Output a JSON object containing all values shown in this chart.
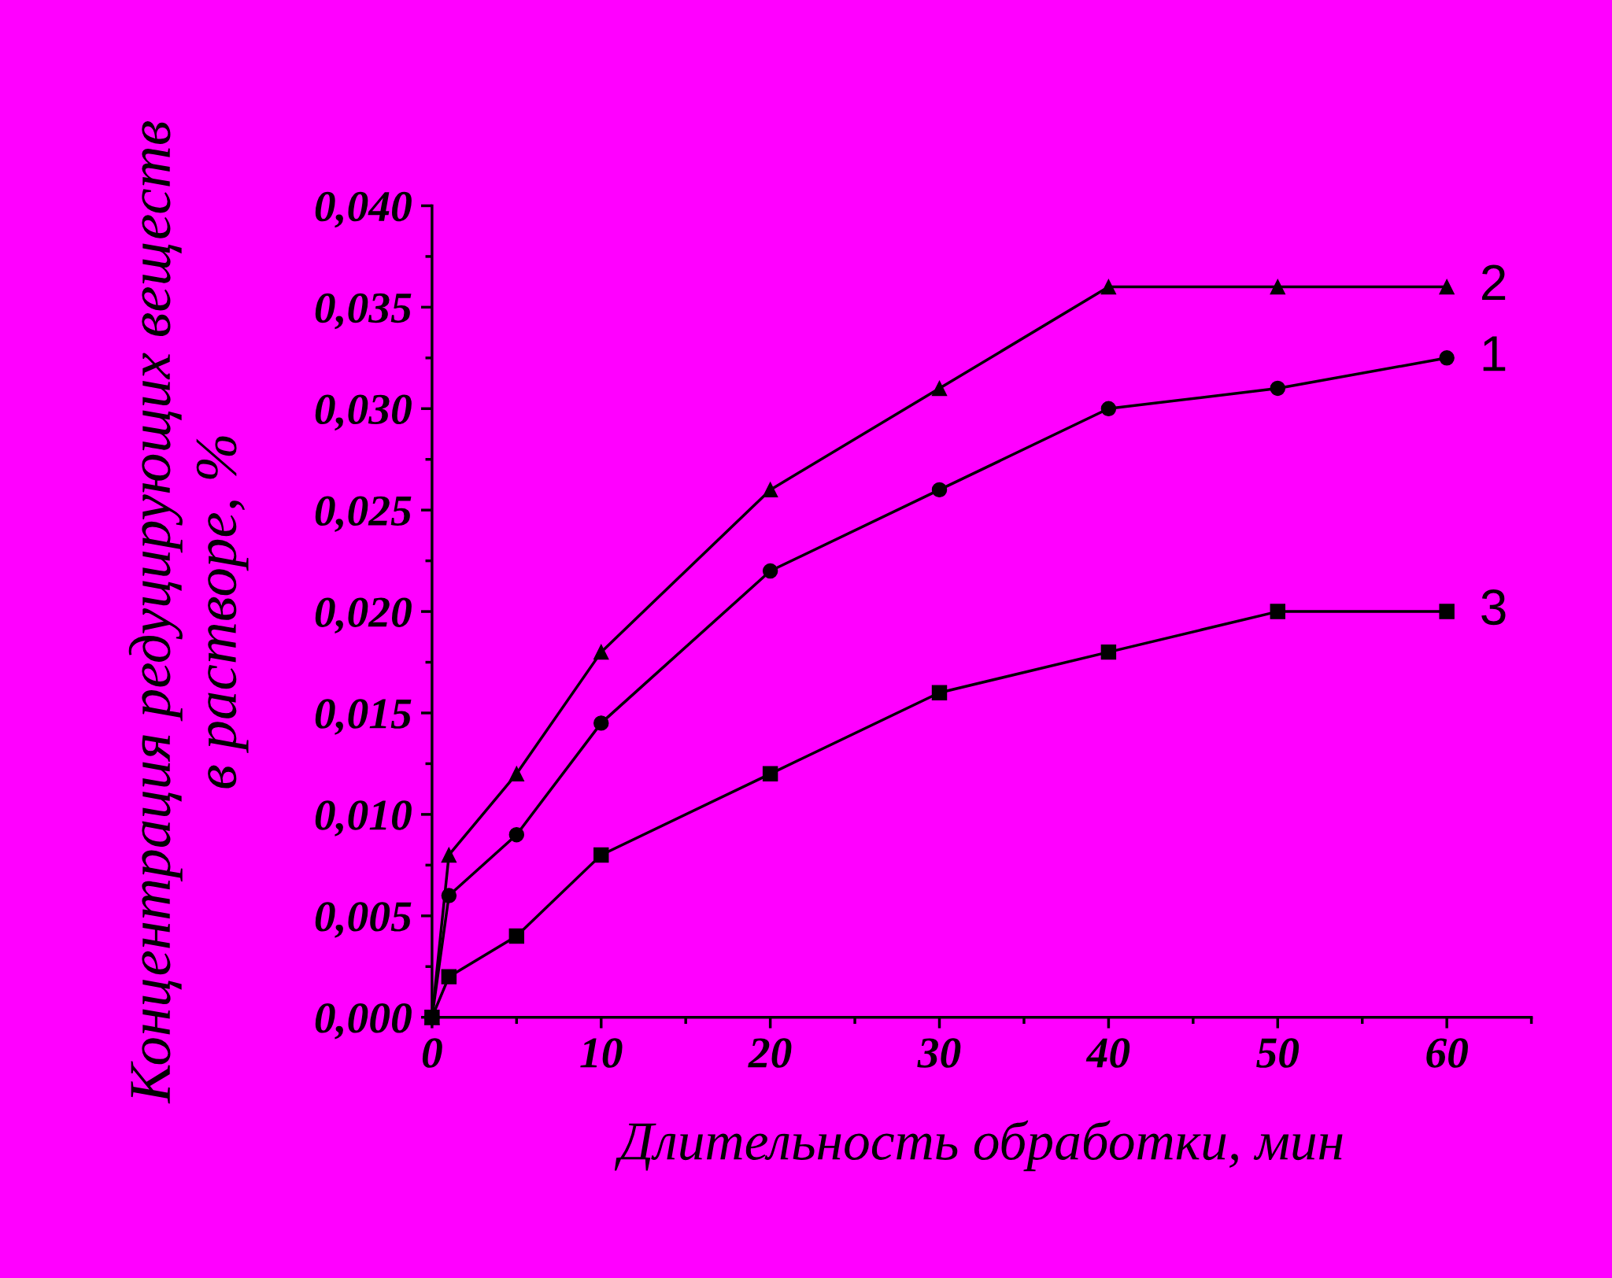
{
  "chart_data": {
    "type": "line",
    "xlabel": "Длительность обработки, мин",
    "ylabel": "Концентрация редуцирующих веществ\nв растворе, %",
    "x": [
      0,
      1,
      5,
      10,
      20,
      30,
      40,
      50,
      60
    ],
    "series": [
      {
        "name": "1",
        "color": "#000000",
        "marker": "circle",
        "values": [
          0,
          0.006,
          0.009,
          0.0145,
          0.022,
          0.026,
          0.03,
          0.031,
          0.0325
        ]
      },
      {
        "name": "2",
        "color": "#000000",
        "marker": "triangle",
        "values": [
          0,
          0.008,
          0.012,
          0.018,
          0.026,
          0.031,
          0.036,
          0.036,
          0.036
        ]
      },
      {
        "name": "3",
        "color": "#000000",
        "marker": "square",
        "values": [
          0,
          0.002,
          0.004,
          0.008,
          0.012,
          0.016,
          0.018,
          0.02,
          0.02
        ]
      }
    ],
    "xlim": [
      0,
      65
    ],
    "xticks": [
      0,
      10,
      20,
      30,
      40,
      50,
      60
    ],
    "ylim": [
      0,
      0.04
    ],
    "yticks": [
      {
        "value": 0,
        "label": "0,000"
      },
      {
        "value": 0.005,
        "label": "0,005"
      },
      {
        "value": 0.01,
        "label": "0,010"
      },
      {
        "value": 0.015,
        "label": "0,015"
      },
      {
        "value": 0.02,
        "label": "0,020"
      },
      {
        "value": 0.025,
        "label": "0,025"
      },
      {
        "value": 0.03,
        "label": "0,030"
      },
      {
        "value": 0.035,
        "label": "0,035"
      },
      {
        "value": 0.04,
        "label": "0,040"
      }
    ],
    "grid": false,
    "legend": false,
    "line_style": "solid"
  }
}
